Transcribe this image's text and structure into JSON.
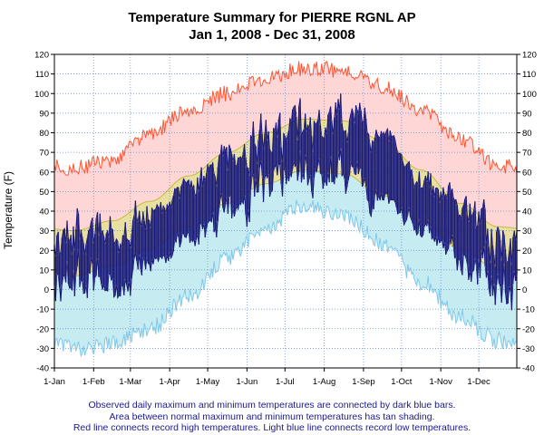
{
  "chart_data": {
    "type": "temperature-summary",
    "title": "Temperature Summary for PIERRE RGNL AP",
    "subtitle": "Jan  1, 2008 - Dec 31, 2008",
    "ylabel": "Temperature (F)",
    "ylim": [
      -40,
      120
    ],
    "yticks": [
      -40,
      -30,
      -20,
      -10,
      0,
      10,
      20,
      30,
      40,
      50,
      60,
      70,
      80,
      90,
      100,
      110,
      120
    ],
    "month_labels": [
      "1-Jan",
      "1-Feb",
      "1-Mar",
      "1-Apr",
      "1-May",
      "1-Jun",
      "1-Jul",
      "1-Aug",
      "1-Sep",
      "1-Oct",
      "1-Nov",
      "1-Dec"
    ],
    "month_start_days": [
      0,
      31,
      60,
      91,
      121,
      152,
      182,
      213,
      244,
      274,
      305,
      335
    ],
    "days_in_year": 366,
    "grid": true,
    "colors": {
      "record_high_line": "#ff5533",
      "record_high_fill": "#ffd6d6",
      "normal_band": "#e8e0a0",
      "normal_band_edge": "#c8b840",
      "record_low_fill": "#c6ecf2",
      "record_low_line": "#7fc8ea",
      "observed_bars": "#1a1a7a",
      "grid": "#5a8ad8"
    },
    "normal_high_monthly": [
      30,
      35,
      45,
      58,
      70,
      80,
      87,
      86,
      76,
      61,
      44,
      32
    ],
    "normal_low_monthly": [
      7,
      12,
      21,
      32,
      44,
      54,
      61,
      59,
      48,
      35,
      21,
      10
    ],
    "record_high_monthly": [
      62,
      66,
      80,
      92,
      100,
      108,
      113,
      112,
      104,
      92,
      77,
      63
    ],
    "record_low_monthly": [
      -30,
      -28,
      -20,
      -3,
      15,
      32,
      43,
      38,
      24,
      4,
      -14,
      -26
    ],
    "observed_high_monthly": [
      28,
      29,
      38,
      53,
      64,
      74,
      85,
      87,
      78,
      56,
      47,
      22
    ],
    "observed_low_monthly": [
      5,
      3,
      13,
      26,
      38,
      52,
      60,
      58,
      45,
      32,
      18,
      0
    ]
  },
  "caption": {
    "line1": "Observed daily maximum and minimum temperatures are connected by dark blue bars.",
    "line2": "Area between normal maximum and minimum temperatures has tan shading.",
    "line3": "Red line connects record high temperatures. Light blue line connects record low temperatures."
  }
}
